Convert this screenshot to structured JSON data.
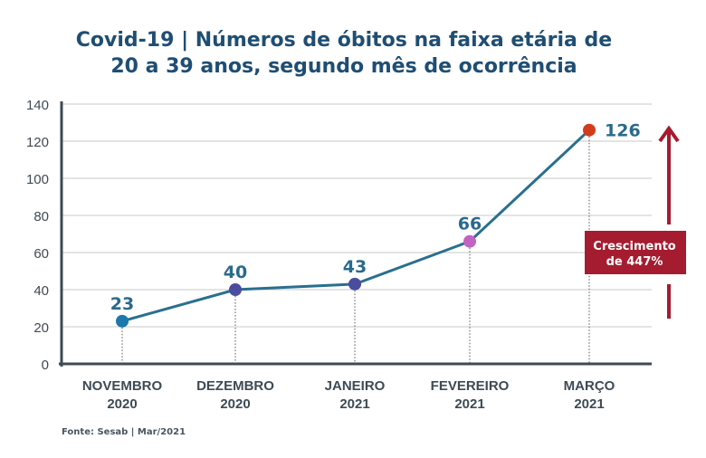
{
  "chart_data": {
    "type": "line",
    "title_line1": "Covid-19 | Números de óbitos na faixa etária de",
    "title_line2": "20 a 39 anos, segundo mês de ocorrência",
    "categories": [
      [
        "NOVEMBRO",
        "2020"
      ],
      [
        "DEZEMBRO",
        "2020"
      ],
      [
        "JANEIRO",
        "2021"
      ],
      [
        "FEVEREIRO",
        "2021"
      ],
      [
        "MARÇO",
        "2021"
      ]
    ],
    "values": [
      23,
      40,
      43,
      66,
      126
    ],
    "data_labels": [
      "23",
      "40",
      "43",
      "66",
      "126"
    ],
    "point_colors": [
      "#1a7aab",
      "#4a4c9e",
      "#4a4c9e",
      "#c462c4",
      "#d23c1c"
    ],
    "line_color": "#2a6f8f",
    "ylim": [
      0,
      140
    ],
    "yticks": [
      0,
      20,
      40,
      60,
      80,
      100,
      120,
      140
    ],
    "grid": true,
    "annotation": {
      "line1": "Crescimento",
      "line2": "de 447%",
      "color": "#a51c30"
    },
    "source": "Fonte: Sesab | Mar/2021"
  }
}
